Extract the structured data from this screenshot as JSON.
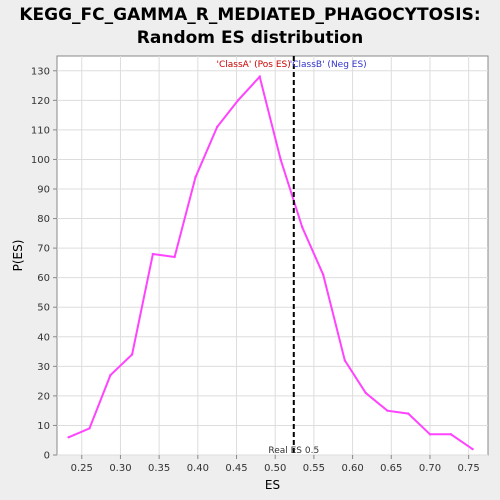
{
  "chart_data": {
    "type": "line",
    "title": "KEGG_FC_GAMMA_R_MEDIATED_PHAGOCYTOSIS:",
    "subtitle": "Random ES distribution",
    "xlabel": "ES",
    "ylabel": "P(ES)",
    "xlim": [
      0.218,
      0.775
    ],
    "ylim": [
      0,
      135
    ],
    "xticks": [
      "0.25",
      "0.30",
      "0.35",
      "0.40",
      "0.45",
      "0.50",
      "0.55",
      "0.60",
      "0.65",
      "0.70",
      "0.75"
    ],
    "yticks": [
      "0",
      "10",
      "20",
      "30",
      "40",
      "50",
      "60",
      "70",
      "80",
      "90",
      "100",
      "110",
      "120",
      "130"
    ],
    "grid": true,
    "series": [
      {
        "color": "#ff44ff",
        "x": [
          0.233,
          0.26,
          0.287,
          0.315,
          0.342,
          0.37,
          0.397,
          0.425,
          0.452,
          0.48,
          0.507,
          0.535,
          0.562,
          0.59,
          0.617,
          0.645,
          0.672,
          0.7,
          0.727,
          0.755
        ],
        "y": [
          6,
          9,
          27,
          34,
          68,
          67,
          94,
          111,
          120,
          128,
          100,
          77,
          61,
          32,
          21,
          15,
          14,
          7,
          7,
          2
        ]
      }
    ],
    "annotations": {
      "real_es_value": 0.524,
      "real_es_label": "Real ES 0.5",
      "classA_label": "'ClassA' (Pos ES)",
      "classB_label": "'ClassB' (Neg ES)",
      "real_es_color": "#000000",
      "classA_color": "#cc0000",
      "classB_color": "#3333cc"
    }
  }
}
